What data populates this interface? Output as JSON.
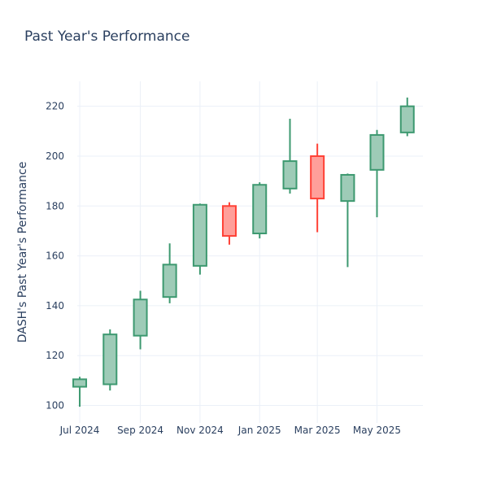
{
  "chart_data": {
    "type": "candlestick",
    "title": "Past Year's Performance",
    "xlabel": "",
    "ylabel": "DASH's Past Year's Performance",
    "ylim": [
      93,
      230
    ],
    "y_ticks": [
      100,
      120,
      140,
      160,
      180,
      200,
      220
    ],
    "x_ticks": [
      "Jul 2024",
      "Sep 2024",
      "Nov 2024",
      "Jan 2025",
      "Mar 2025",
      "May 2025"
    ],
    "grid": true,
    "colors": {
      "increasing": "#3d9970",
      "increasing_fill": "#9ecbb7",
      "decreasing": "#ff4136",
      "decreasing_fill": "#ff9f9a",
      "text": "#2a3f5f",
      "grid": "#ebf0f8"
    },
    "candles": [
      {
        "date": "2024-07-01",
        "open": 107.5,
        "high": 111.5,
        "low": 99.5,
        "close": 110.5
      },
      {
        "date": "2024-08-01",
        "open": 108.5,
        "high": 130.5,
        "low": 106,
        "close": 128.5
      },
      {
        "date": "2024-09-01",
        "open": 128,
        "high": 146,
        "low": 122.5,
        "close": 142.5
      },
      {
        "date": "2024-10-01",
        "open": 143.5,
        "high": 165,
        "low": 141,
        "close": 156.5
      },
      {
        "date": "2024-11-01",
        "open": 156,
        "high": 181,
        "low": 152.5,
        "close": 180.5
      },
      {
        "date": "2024-12-01",
        "open": 180,
        "high": 181.5,
        "low": 164.5,
        "close": 168
      },
      {
        "date": "2025-01-01",
        "open": 169,
        "high": 189.5,
        "low": 167,
        "close": 188.5
      },
      {
        "date": "2025-02-01",
        "open": 187,
        "high": 215,
        "low": 185,
        "close": 198
      },
      {
        "date": "2025-03-01",
        "open": 200,
        "high": 205,
        "low": 169.5,
        "close": 183
      },
      {
        "date": "2025-04-01",
        "open": 182,
        "high": 193,
        "low": 155.5,
        "close": 192.5
      },
      {
        "date": "2025-05-01",
        "open": 194.5,
        "high": 210.5,
        "low": 175.5,
        "close": 208.5
      },
      {
        "date": "2025-06-01",
        "open": 209.5,
        "high": 223.5,
        "low": 208,
        "close": 220
      }
    ]
  }
}
